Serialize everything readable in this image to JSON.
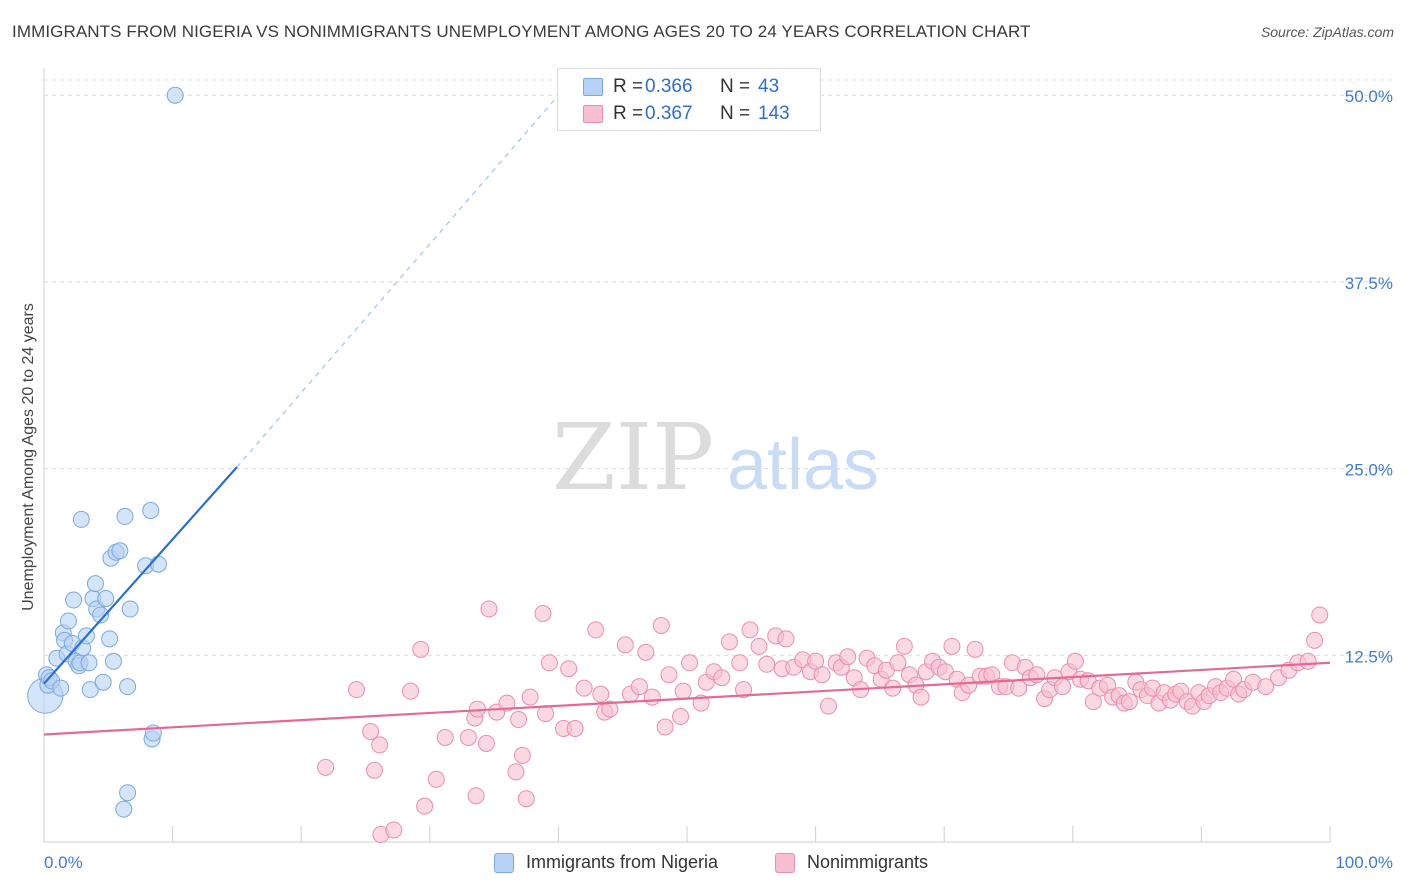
{
  "title": "IMMIGRANTS FROM NIGERIA VS NONIMMIGRANTS UNEMPLOYMENT AMONG AGES 20 TO 24 YEARS CORRELATION CHART",
  "source": "Source: ZipAtlas.com",
  "watermark": {
    "zip": "ZIP",
    "atlas": "atlas"
  },
  "legend_top": [
    {
      "r_label": "R =",
      "r_value": "0.366",
      "n_label": "N =",
      "n_value": "43"
    },
    {
      "r_label": "R =",
      "r_value": "0.367",
      "n_label": "N =",
      "n_value": "143"
    }
  ],
  "legend_bottom": [
    "Immigrants from Nigeria",
    "Nonimmigrants"
  ],
  "colors": {
    "blue_fill": "#b7d2f5",
    "blue_stroke": "#7aa8e0",
    "blue_line": "#2a6fcc",
    "pink_fill": "#f7bfd1",
    "pink_stroke": "#e98fae",
    "pink_line": "#e46a95",
    "axis_text": "#3f7bd1"
  },
  "chart_data": {
    "type": "scatter",
    "title": "IMMIGRANTS FROM NIGERIA VS NONIMMIGRANTS UNEMPLOYMENT AMONG AGES 20 TO 24 YEARS CORRELATION CHART",
    "xlabel": "",
    "ylabel": "Unemployment Among Ages 20 to 24 years",
    "xlim": [
      0,
      100
    ],
    "ylim": [
      0,
      50
    ],
    "x_tick_labels": [
      "0.0%",
      "100.0%"
    ],
    "y_ticks": [
      12.5,
      25.0,
      37.5,
      50.0
    ],
    "y_tick_labels": [
      "12.5%",
      "25.0%",
      "37.5%",
      "50.0%"
    ],
    "series": [
      {
        "name": "Immigrants from Nigeria",
        "R": 0.366,
        "N": 43,
        "trend": {
          "x0": 0,
          "y0": 10.6,
          "x1": 15.0,
          "y1": 25.1,
          "dashed_to_x": 40.0,
          "dashed_to_y": 50.0
        },
        "points": [
          [
            0.1,
            9.8,
            2.2
          ],
          [
            0.2,
            11.2,
            1
          ],
          [
            0.3,
            10.5,
            1
          ],
          [
            0.4,
            11.0,
            1
          ],
          [
            0.6,
            10.8,
            1
          ],
          [
            1.0,
            12.3,
            1
          ],
          [
            1.3,
            10.3,
            1
          ],
          [
            1.5,
            14.0,
            1
          ],
          [
            1.6,
            13.5,
            1
          ],
          [
            1.8,
            12.6,
            1
          ],
          [
            1.9,
            14.8,
            1
          ],
          [
            2.2,
            13.3,
            1
          ],
          [
            2.3,
            16.2,
            1
          ],
          [
            2.5,
            12.1,
            1
          ],
          [
            2.7,
            11.8,
            1
          ],
          [
            2.8,
            12.0,
            1
          ],
          [
            2.9,
            21.6,
            1
          ],
          [
            3.0,
            13.0,
            1
          ],
          [
            3.3,
            13.8,
            1
          ],
          [
            3.5,
            12.0,
            1
          ],
          [
            3.6,
            10.2,
            1
          ],
          [
            3.8,
            16.3,
            1
          ],
          [
            4.0,
            17.3,
            1
          ],
          [
            4.1,
            15.6,
            1
          ],
          [
            4.4,
            15.2,
            1
          ],
          [
            4.6,
            10.7,
            1
          ],
          [
            4.8,
            16.3,
            1
          ],
          [
            5.1,
            13.6,
            1
          ],
          [
            5.2,
            19.0,
            1
          ],
          [
            5.4,
            12.1,
            1
          ],
          [
            5.6,
            19.4,
            1
          ],
          [
            5.9,
            19.5,
            1
          ],
          [
            6.3,
            21.8,
            1
          ],
          [
            6.5,
            10.4,
            1
          ],
          [
            6.7,
            15.6,
            1
          ],
          [
            7.9,
            18.5,
            1
          ],
          [
            8.3,
            22.2,
            1
          ],
          [
            8.4,
            6.9,
            1
          ],
          [
            8.5,
            7.3,
            1
          ],
          [
            8.9,
            18.6,
            1
          ],
          [
            6.5,
            3.3,
            1
          ],
          [
            6.2,
            2.2,
            1
          ],
          [
            10.2,
            50.0,
            1
          ]
        ]
      },
      {
        "name": "Nonimmigrants",
        "R": 0.367,
        "N": 143,
        "trend": {
          "x0": 0,
          "y0": 7.2,
          "x1": 100,
          "y1": 12.0
        },
        "points": [
          [
            21.9,
            5.0
          ],
          [
            24.3,
            10.2
          ],
          [
            25.4,
            7.4
          ],
          [
            25.7,
            4.8
          ],
          [
            26.1,
            6.5
          ],
          [
            26.2,
            0.5
          ],
          [
            27.2,
            0.8
          ],
          [
            28.5,
            10.1
          ],
          [
            29.3,
            12.9
          ],
          [
            29.6,
            2.4
          ],
          [
            30.5,
            4.2
          ],
          [
            31.2,
            7.0
          ],
          [
            33.0,
            7.0
          ],
          [
            33.5,
            8.3
          ],
          [
            33.6,
            3.1
          ],
          [
            33.7,
            8.9
          ],
          [
            34.4,
            6.6
          ],
          [
            34.6,
            15.6
          ],
          [
            35.2,
            8.7
          ],
          [
            36.0,
            9.3
          ],
          [
            36.7,
            4.7
          ],
          [
            36.9,
            8.2
          ],
          [
            37.2,
            5.8
          ],
          [
            37.5,
            2.9
          ],
          [
            37.8,
            9.7
          ],
          [
            38.8,
            15.3
          ],
          [
            39.0,
            8.6
          ],
          [
            39.3,
            12.0
          ],
          [
            40.4,
            7.6
          ],
          [
            40.8,
            11.6
          ],
          [
            41.3,
            7.6
          ],
          [
            42.0,
            10.3
          ],
          [
            42.9,
            14.2
          ],
          [
            43.3,
            9.9
          ],
          [
            43.6,
            8.7
          ],
          [
            44.0,
            8.9
          ],
          [
            45.2,
            13.2
          ],
          [
            45.6,
            9.9
          ],
          [
            46.3,
            10.4
          ],
          [
            46.8,
            12.7
          ],
          [
            47.3,
            9.7
          ],
          [
            48.0,
            14.5
          ],
          [
            48.3,
            7.7
          ],
          [
            48.6,
            11.2
          ],
          [
            49.5,
            8.4
          ],
          [
            49.7,
            10.1
          ],
          [
            50.2,
            12.0
          ],
          [
            51.1,
            9.3
          ],
          [
            51.5,
            10.7
          ],
          [
            52.1,
            11.4
          ],
          [
            52.7,
            11.0
          ],
          [
            53.3,
            13.4
          ],
          [
            54.1,
            12.0
          ],
          [
            54.4,
            10.2
          ],
          [
            54.9,
            14.2
          ],
          [
            55.6,
            13.1
          ],
          [
            56.2,
            11.9
          ],
          [
            56.9,
            13.8
          ],
          [
            57.4,
            11.6
          ],
          [
            57.7,
            13.6
          ],
          [
            58.3,
            11.7
          ],
          [
            59.0,
            12.2
          ],
          [
            59.6,
            11.4
          ],
          [
            60.0,
            12.1
          ],
          [
            60.5,
            11.2
          ],
          [
            61.0,
            9.1
          ],
          [
            61.6,
            12.0
          ],
          [
            62.0,
            11.7
          ],
          [
            62.5,
            12.4
          ],
          [
            63.0,
            11.0
          ],
          [
            63.5,
            10.2
          ],
          [
            64.0,
            12.3
          ],
          [
            64.6,
            11.8
          ],
          [
            65.1,
            10.9
          ],
          [
            65.5,
            11.5
          ],
          [
            66.0,
            10.3
          ],
          [
            66.4,
            12.0
          ],
          [
            66.9,
            13.1
          ],
          [
            67.3,
            11.2
          ],
          [
            67.8,
            10.5
          ],
          [
            68.2,
            9.7
          ],
          [
            68.6,
            11.4
          ],
          [
            69.1,
            12.1
          ],
          [
            69.6,
            11.7
          ],
          [
            70.1,
            11.4
          ],
          [
            70.6,
            13.1
          ],
          [
            71.0,
            10.9
          ],
          [
            71.4,
            10.0
          ],
          [
            71.9,
            10.5
          ],
          [
            72.4,
            12.9
          ],
          [
            72.8,
            11.1
          ],
          [
            73.3,
            11.1
          ],
          [
            73.7,
            11.2
          ],
          [
            74.3,
            10.4
          ],
          [
            74.8,
            10.4
          ],
          [
            75.3,
            12.0
          ],
          [
            75.8,
            10.3
          ],
          [
            76.3,
            11.7
          ],
          [
            76.7,
            11.0
          ],
          [
            77.2,
            11.2
          ],
          [
            77.8,
            9.6
          ],
          [
            78.2,
            10.2
          ],
          [
            78.6,
            11.0
          ],
          [
            79.2,
            10.4
          ],
          [
            79.7,
            11.4
          ],
          [
            80.2,
            12.1
          ],
          [
            80.6,
            10.9
          ],
          [
            81.2,
            10.8
          ],
          [
            81.6,
            9.4
          ],
          [
            82.1,
            10.3
          ],
          [
            82.7,
            10.5
          ],
          [
            83.1,
            9.7
          ],
          [
            83.6,
            9.8
          ],
          [
            84.0,
            9.3
          ],
          [
            84.4,
            9.4
          ],
          [
            84.9,
            10.7
          ],
          [
            85.3,
            10.2
          ],
          [
            85.8,
            9.8
          ],
          [
            86.2,
            10.3
          ],
          [
            86.7,
            9.3
          ],
          [
            87.1,
            10.0
          ],
          [
            87.6,
            9.5
          ],
          [
            88.0,
            9.9
          ],
          [
            88.4,
            10.1
          ],
          [
            88.9,
            9.4
          ],
          [
            89.3,
            9.1
          ],
          [
            89.8,
            10.0
          ],
          [
            90.2,
            9.4
          ],
          [
            90.6,
            9.8
          ],
          [
            91.1,
            10.4
          ],
          [
            91.5,
            10.0
          ],
          [
            92.0,
            10.3
          ],
          [
            92.5,
            10.9
          ],
          [
            92.9,
            9.9
          ],
          [
            93.3,
            10.2
          ],
          [
            94.0,
            10.7
          ],
          [
            95.0,
            10.4
          ],
          [
            96.0,
            11.0
          ],
          [
            96.8,
            11.5
          ],
          [
            97.5,
            12.0
          ],
          [
            98.3,
            12.1
          ],
          [
            98.8,
            13.5
          ],
          [
            99.2,
            15.2
          ]
        ]
      }
    ]
  }
}
